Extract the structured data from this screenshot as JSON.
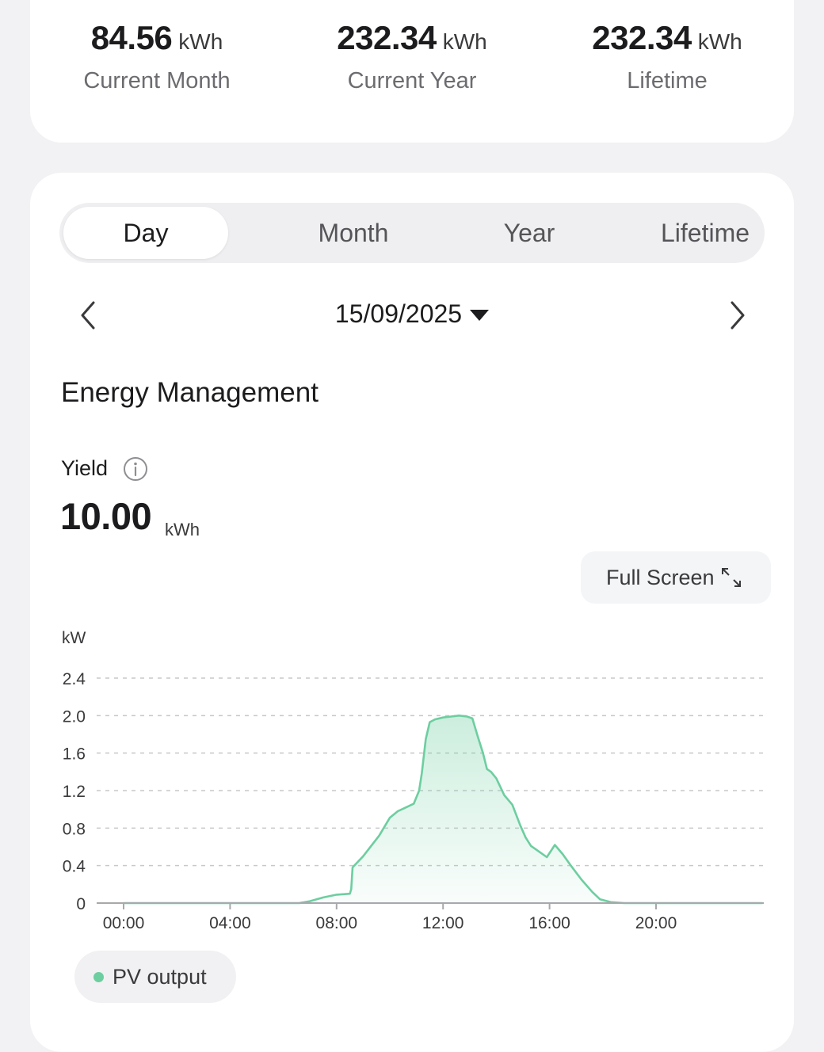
{
  "summary": [
    {
      "value": "84.56",
      "unit": "kWh",
      "label": "Current Month"
    },
    {
      "value": "232.34",
      "unit": "kWh",
      "label": "Current Year"
    },
    {
      "value": "232.34",
      "unit": "kWh",
      "label": "Lifetime"
    }
  ],
  "tabs": [
    "Day",
    "Month",
    "Year",
    "Lifetime"
  ],
  "active_tab": "Day",
  "date": "15/09/2025",
  "section_title": "Energy Management",
  "yield": {
    "label": "Yield",
    "value": "10.00",
    "unit": "kWh"
  },
  "fullscreen_label": "Full Screen",
  "colors": {
    "series": "#6dcea0",
    "grid": "#c8c8cc"
  },
  "chart_data": {
    "type": "area",
    "ylabel": "kW",
    "ylim": [
      0,
      2.4
    ],
    "yticks": [
      "0",
      "0.4",
      "0.8",
      "1.2",
      "1.6",
      "2.0",
      "2.4"
    ],
    "xlim": [
      0,
      24
    ],
    "xticks": [
      "00:00",
      "04:00",
      "08:00",
      "12:00",
      "16:00",
      "20:00"
    ],
    "grid": true,
    "legend": "bottom-left",
    "series": [
      {
        "name": "PV output",
        "x": [
          0,
          6.6,
          7.0,
          7.5,
          8.0,
          8.5,
          8.55,
          8.6,
          9.0,
          9.3,
          9.6,
          10.0,
          10.3,
          10.6,
          10.9,
          11.1,
          11.2,
          11.35,
          11.5,
          11.7,
          12.0,
          12.3,
          12.6,
          12.9,
          13.1,
          13.3,
          13.5,
          13.65,
          13.8,
          14.0,
          14.3,
          14.6,
          14.9,
          15.1,
          15.3,
          15.6,
          15.9,
          16.2,
          16.5,
          16.8,
          17.2,
          17.6,
          17.9,
          18.3,
          18.8,
          19.2,
          24
        ],
        "values": [
          0,
          0,
          0.02,
          0.06,
          0.09,
          0.1,
          0.15,
          0.38,
          0.5,
          0.61,
          0.72,
          0.91,
          0.98,
          1.02,
          1.06,
          1.2,
          1.38,
          1.75,
          1.93,
          1.96,
          1.98,
          1.99,
          2.0,
          1.99,
          1.97,
          1.78,
          1.6,
          1.43,
          1.4,
          1.33,
          1.15,
          1.05,
          0.83,
          0.7,
          0.61,
          0.55,
          0.49,
          0.62,
          0.52,
          0.4,
          0.25,
          0.12,
          0.04,
          0.01,
          0,
          0,
          0
        ]
      }
    ]
  }
}
